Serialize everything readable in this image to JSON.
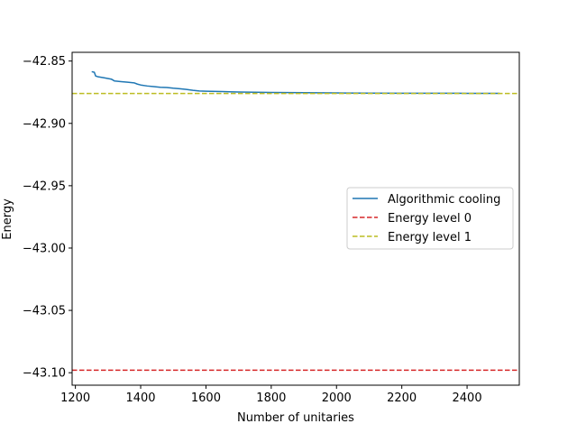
{
  "chart_data": {
    "type": "line",
    "title": "",
    "xlabel": "Number of unitaries",
    "ylabel": "Energy",
    "xlim": [
      1190,
      2560
    ],
    "ylim": [
      -43.11,
      -42.843
    ],
    "xticks": [
      1200,
      1400,
      1600,
      1800,
      2000,
      2200,
      2400
    ],
    "xtick_labels": [
      "1200",
      "1400",
      "1600",
      "1800",
      "2000",
      "2200",
      "2400"
    ],
    "yticks": [
      -42.85,
      -42.9,
      -42.95,
      -43.0,
      -43.05,
      -43.1
    ],
    "ytick_labels": [
      "−42.85",
      "−42.90",
      "−42.95",
      "−43.00",
      "−43.05",
      "−43.10"
    ],
    "grid": false,
    "legend_position": "center-right",
    "series": [
      {
        "name": "Algorithmic cooling",
        "style": "solid",
        "color": "#1f77b4",
        "x": [
          1250,
          1258,
          1262,
          1268,
          1290,
          1310,
          1320,
          1340,
          1360,
          1380,
          1390,
          1400,
          1420,
          1440,
          1460,
          1480,
          1500,
          1520,
          1540,
          1560,
          1580,
          1600,
          1650,
          1700,
          1750,
          1800,
          1850,
          1900,
          1950,
          2000,
          2100,
          2200,
          2300,
          2400,
          2500
        ],
        "y": [
          -42.8585,
          -42.859,
          -42.862,
          -42.8625,
          -42.8635,
          -42.8645,
          -42.866,
          -42.8665,
          -42.867,
          -42.8675,
          -42.8685,
          -42.8692,
          -42.87,
          -42.8705,
          -42.871,
          -42.8712,
          -42.8718,
          -42.8722,
          -42.8728,
          -42.8735,
          -42.874,
          -42.8742,
          -42.8745,
          -42.8748,
          -42.875,
          -42.8752,
          -42.8753,
          -42.8754,
          -42.8755,
          -42.8756,
          -42.8757,
          -42.8758,
          -42.8758,
          -42.8759,
          -42.8759
        ]
      },
      {
        "name": "Energy level 0",
        "style": "dashed",
        "color": "#d62728",
        "y_constant": -43.098
      },
      {
        "name": "Energy level 1",
        "style": "dashed",
        "color": "#bcbd22",
        "y_constant": -42.876
      }
    ]
  }
}
